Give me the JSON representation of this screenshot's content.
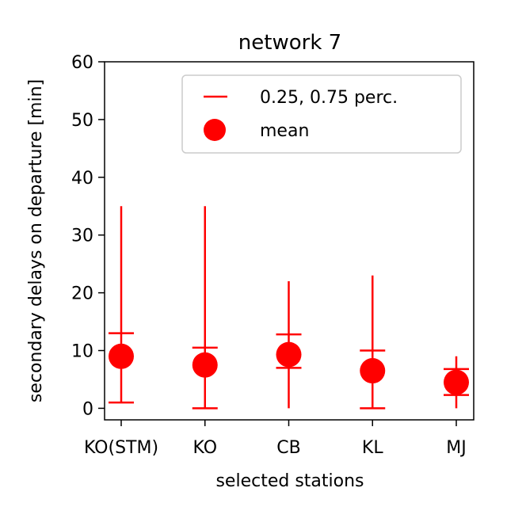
{
  "chart_data": {
    "type": "scatter",
    "title": "network 7",
    "xlabel": "selected stations",
    "ylabel": "secondary delays on departure [min]",
    "ylim": [
      -2,
      60
    ],
    "yticks": [
      0,
      10,
      20,
      30,
      40,
      50,
      60
    ],
    "categories": [
      "KO(STM)",
      "KO",
      "CB",
      "KL",
      "MJ"
    ],
    "series": [
      {
        "name": "mean",
        "values": [
          9.0,
          7.5,
          9.3,
          6.5,
          4.5
        ]
      }
    ],
    "range_lower": [
      1.0,
      0.0,
      0.0,
      0.0,
      0.0
    ],
    "range_upper": [
      35.0,
      35.0,
      22.0,
      23.0,
      9.0
    ],
    "perc_25": [
      1.0,
      0.0,
      7.0,
      0.0,
      2.3
    ],
    "perc_75": [
      13.0,
      10.5,
      12.8,
      10.0,
      6.8
    ],
    "legend": {
      "position": "upper right",
      "entries": [
        "0.25, 0.75 perc.",
        "mean"
      ]
    },
    "grid": false,
    "color": "#ff0000"
  }
}
